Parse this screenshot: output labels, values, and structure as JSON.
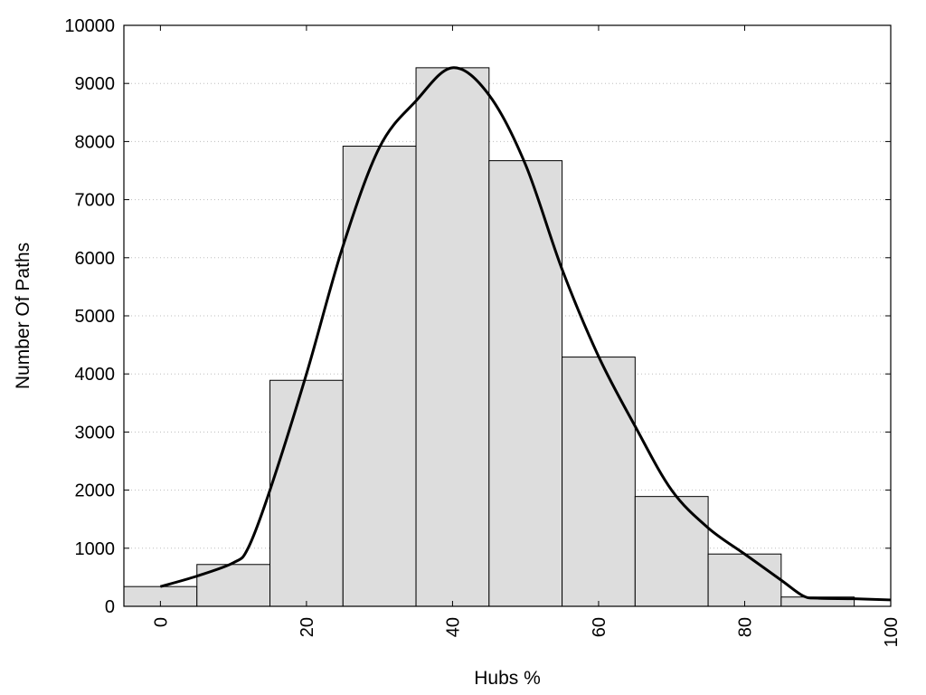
{
  "chart_data": {
    "type": "bar",
    "xlabel": "Hubs %",
    "ylabel": "Number Of Paths",
    "xlim": [
      -5,
      100
    ],
    "ylim": [
      0,
      10000
    ],
    "bin_width": 10,
    "grid": {
      "horizontal": true,
      "style": "dotted"
    },
    "x_ticks": [
      0,
      20,
      40,
      60,
      80,
      100
    ],
    "y_ticks": [
      0,
      1000,
      2000,
      3000,
      4000,
      5000,
      6000,
      7000,
      8000,
      9000,
      10000
    ],
    "x_tick_labels": [
      "0",
      "20",
      "40",
      "60",
      "80",
      "100"
    ],
    "y_tick_labels": [
      "0",
      "1000",
      "2000",
      "3000",
      "4000",
      "5000",
      "6000",
      "7000",
      "8000",
      "9000",
      "10000"
    ],
    "bars": [
      {
        "x": 0,
        "value": 340
      },
      {
        "x": 10,
        "value": 720
      },
      {
        "x": 20,
        "value": 3890
      },
      {
        "x": 30,
        "value": 7920
      },
      {
        "x": 40,
        "value": 9270
      },
      {
        "x": 50,
        "value": 7670
      },
      {
        "x": 60,
        "value": 4290
      },
      {
        "x": 70,
        "value": 1890
      },
      {
        "x": 80,
        "value": 900
      },
      {
        "x": 90,
        "value": 160
      },
      {
        "x": 100,
        "value": 0
      }
    ],
    "density_curve": {
      "x": [
        0,
        5,
        10,
        12,
        15,
        20,
        25,
        30,
        35,
        40,
        45,
        50,
        55,
        60,
        65,
        70,
        75,
        80,
        85,
        88,
        90,
        95,
        100
      ],
      "y": [
        340,
        520,
        750,
        1000,
        2000,
        4000,
        6200,
        7900,
        8700,
        9270,
        8800,
        7600,
        5800,
        4300,
        3100,
        2000,
        1350,
        900,
        450,
        180,
        140,
        130,
        110
      ]
    },
    "colors": {
      "bar_fill": "#dddddd",
      "bar_stroke": "#000000",
      "curve": "#000000",
      "grid": "#bdbdbd"
    }
  }
}
